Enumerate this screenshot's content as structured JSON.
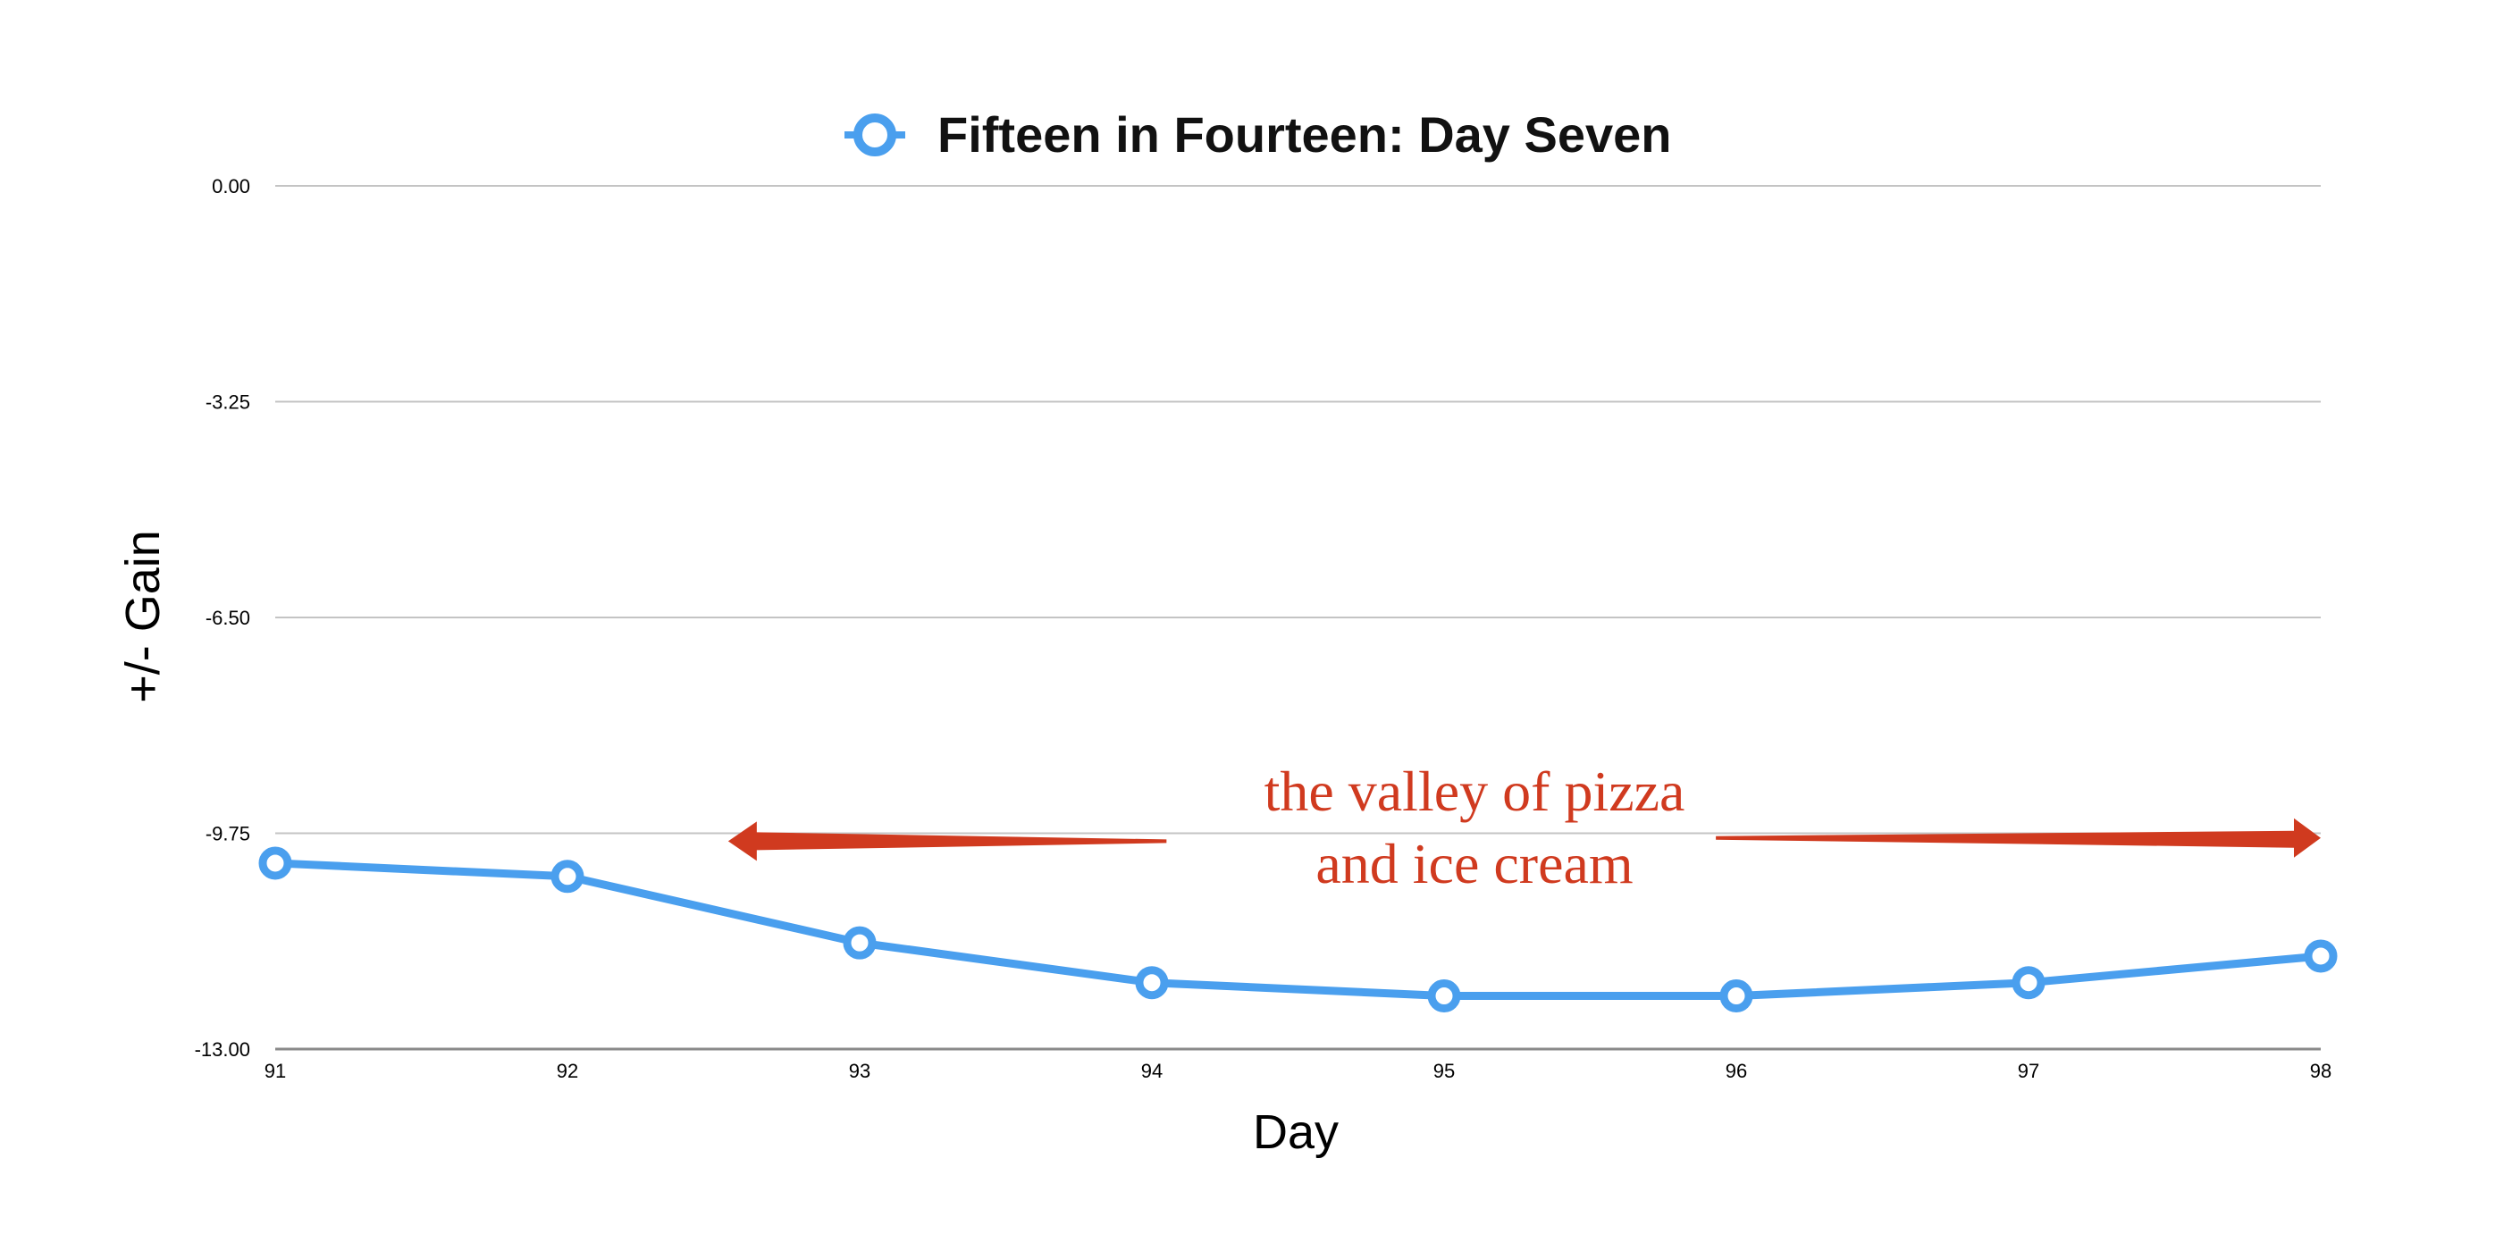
{
  "chart_data": {
    "type": "line",
    "title": "Fifteen in Fourteen: Day Seven",
    "xlabel": "Day",
    "ylabel": "+/- Gain",
    "x": [
      91,
      92,
      93,
      94,
      95,
      96,
      97,
      98
    ],
    "x_tick_labels": [
      "91",
      "92",
      "93",
      "94",
      "95",
      "96",
      "97",
      "98"
    ],
    "y_ticks": [
      0,
      -3.25,
      -6.5,
      -9.75,
      -13
    ],
    "y_tick_labels": [
      "0.00",
      "-3.25",
      "-6.50",
      "-9.75",
      "-13.00"
    ],
    "ylim": [
      -13,
      0
    ],
    "xlim": [
      91,
      98
    ],
    "grid": true,
    "legend": "top-center",
    "series": [
      {
        "values": [
          -10.2,
          -10.4,
          -11.4,
          -12.0,
          -12.2,
          -12.2,
          -12.0,
          -11.6
        ],
        "color": "#4a9fee"
      }
    ],
    "annotation": {
      "lines": [
        "the valley of pizza",
        "and ice cream"
      ],
      "color": "#d03a1f",
      "arrow_from_x": 92.55,
      "arrow_to_x": 98
    }
  }
}
